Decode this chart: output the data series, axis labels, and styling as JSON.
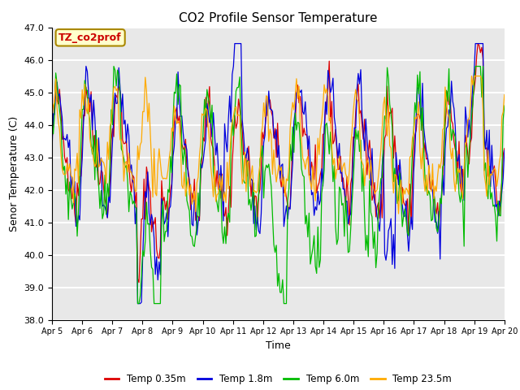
{
  "title": "CO2 Profile Sensor Temperature",
  "ylabel": "Senor Temperature (C)",
  "xlabel": "Time",
  "ylim": [
    38.0,
    47.0
  ],
  "yticks": [
    38.0,
    39.0,
    40.0,
    41.0,
    42.0,
    43.0,
    44.0,
    45.0,
    46.0,
    47.0
  ],
  "xtick_labels": [
    "Apr 5",
    "Apr 6",
    "Apr 7",
    "Apr 8",
    "Apr 9",
    "Apr 10",
    "Apr 11",
    "Apr 12",
    "Apr 13",
    "Apr 14",
    "Apr 15",
    "Apr 16",
    "Apr 17",
    "Apr 18",
    "Apr 19",
    "Apr 20"
  ],
  "line_colors": [
    "#dd0000",
    "#0000dd",
    "#00bb00",
    "#ffaa00"
  ],
  "line_labels": [
    "Temp 0.35m",
    "Temp 1.8m",
    "Temp 6.0m",
    "Temp 23.5m"
  ],
  "annotation_text": "TZ_co2prof",
  "annotation_bg": "#ffffcc",
  "annotation_edge": "#aa8800",
  "plot_bg": "#e8e8e8",
  "fig_bg": "#ffffff",
  "n_points": 360,
  "seed": 42
}
